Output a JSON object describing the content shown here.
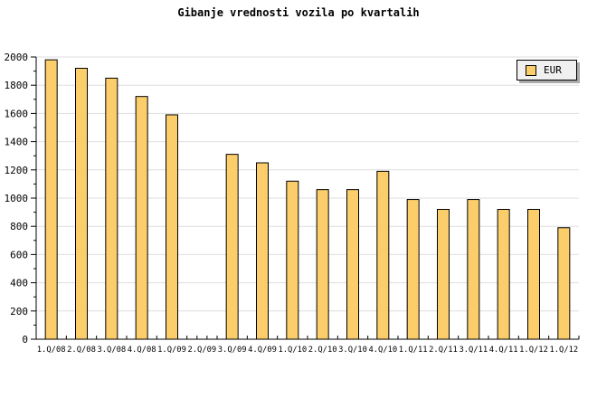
{
  "title": "Gibanje vrednosti vozila po kvartalih",
  "legend": {
    "label": "EUR"
  },
  "colors": {
    "background": "#FFFFFF",
    "bar_fill": "#FBCE6B",
    "bar_border": "#000000",
    "grid": "#DEDEDE",
    "axis": "#000000",
    "text": "#000000",
    "legend_bg": "#F0F0F0",
    "legend_shadow": "#AAAAAA"
  },
  "chart_data": {
    "type": "bar",
    "title": "Gibanje vrednosti vozila po kvartalih",
    "xlabel": "",
    "ylabel": "",
    "categories": [
      "1.Q/08",
      "2.Q/08",
      "3.Q/08",
      "4.Q/08",
      "1.Q/09",
      "2.Q/09",
      "3.Q/09",
      "4.Q/09",
      "1.Q/10",
      "2.Q/10",
      "3.Q/10",
      "4.Q/10",
      "1.Q/11",
      "2.Q/11",
      "3.Q/11",
      "4.Q/11",
      "1.Q/12",
      "1.Q/12"
    ],
    "series": [
      {
        "name": "EUR",
        "values": [
          1980,
          1920,
          1850,
          1720,
          1590,
          null,
          1310,
          1250,
          1120,
          1060,
          1060,
          1190,
          990,
          920,
          990,
          920,
          920,
          790
        ]
      }
    ],
    "ylim": [
      0,
      2000
    ],
    "ytick_step": 200,
    "yminor_step": 100,
    "ytick_labels": [
      "0",
      "200",
      "400",
      "600",
      "800",
      "1000",
      "1200",
      "1400",
      "1600",
      "1800",
      "2000"
    ],
    "grid": "horizontal-major",
    "legend_position": "top-right"
  }
}
